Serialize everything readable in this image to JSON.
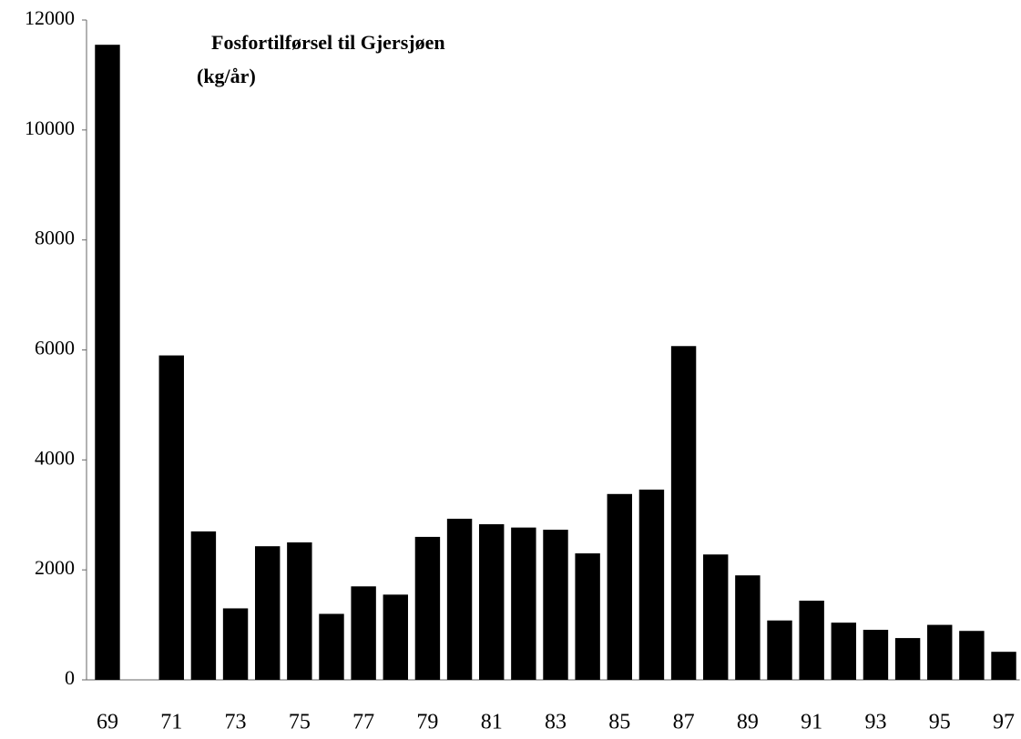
{
  "chart_data": {
    "type": "bar",
    "title": "Fosfortilførsel til Gjersjøen",
    "subtitle": "(kg/år)",
    "categories": [
      "69",
      null,
      "71",
      null,
      "73",
      null,
      "75",
      null,
      "77",
      null,
      "79",
      null,
      "81",
      null,
      "83",
      null,
      "85",
      null,
      "87",
      null,
      "89",
      null,
      "91",
      null,
      "93",
      null,
      "95",
      null,
      "97"
    ],
    "values": [
      11550,
      null,
      5900,
      2700,
      1300,
      2430,
      2500,
      1200,
      1700,
      1550,
      2600,
      2930,
      2830,
      2770,
      2730,
      2300,
      3380,
      3460,
      6070,
      2280,
      1900,
      1080,
      1440,
      1040,
      910,
      760,
      1000,
      890,
      510
    ],
    "color": "#000000",
    "ylim": [
      0,
      12000
    ],
    "yticks": [
      0,
      2000,
      4000,
      6000,
      8000,
      10000,
      12000
    ],
    "grid": false
  }
}
